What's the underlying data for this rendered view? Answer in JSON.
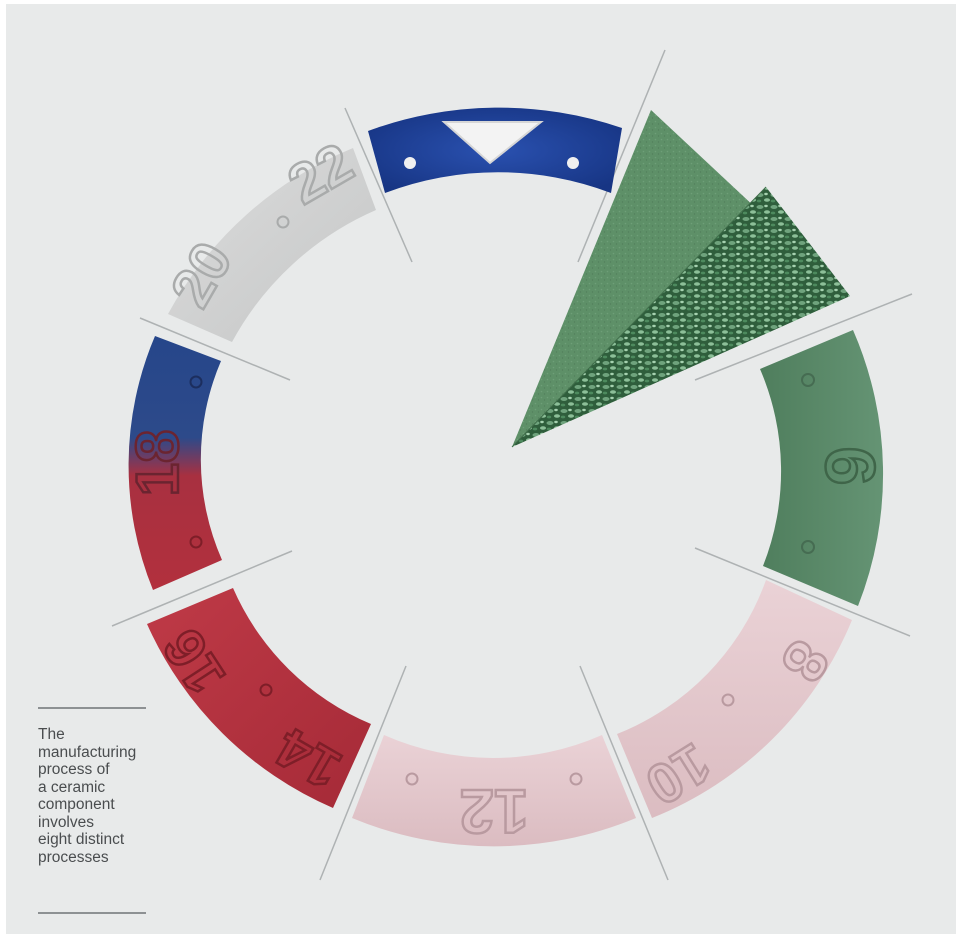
{
  "caption": {
    "text_lines": [
      "The",
      "manufacturing",
      "process of",
      "a ceramic",
      "component",
      "involves",
      "eight distinct",
      "processes"
    ]
  },
  "bezel_segments": [
    {
      "name": "navy-bezel-segment",
      "marking": "▼",
      "color": "#1d3f96"
    },
    {
      "name": "green-powder-segment",
      "marking": "",
      "color": "#5a8c66"
    },
    {
      "name": "green-bezel-segment",
      "marking": "6",
      "color": "#5a8568"
    },
    {
      "name": "pink-bezel-segment-8-10",
      "marking": "8 · 10",
      "color": "#e3c7cc"
    },
    {
      "name": "pink-bezel-segment-12",
      "marking": "12",
      "color": "#e5c9cd"
    },
    {
      "name": "red-bezel-segment-14-16",
      "marking": "14 · 16",
      "color": "#b3323f"
    },
    {
      "name": "blue-red-bezel-segment-18",
      "marking": "18",
      "color": "#b3323f"
    },
    {
      "name": "white-bezel-segment-20-22",
      "marking": "20 · 22",
      "color": "#d2d3d3"
    }
  ]
}
